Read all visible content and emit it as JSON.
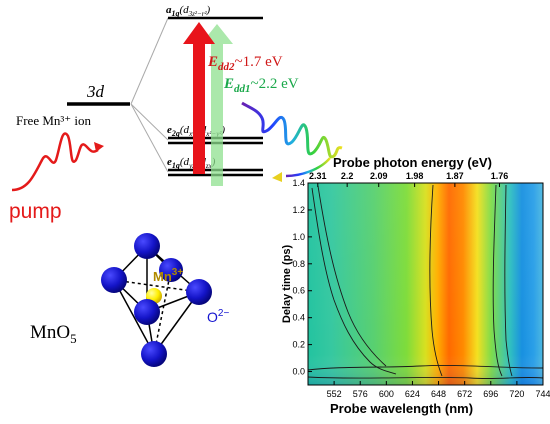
{
  "levels": {
    "free_label": "3d",
    "free_caption": "Free Mn³⁺ ion",
    "a1g": "a₁g(d3z²−r²)",
    "a1g_main": "a",
    "a1g_sub": "1g",
    "a1g_orb": "(d",
    "a1g_orb_sub": "3z²−r²",
    "e2g_main": "e",
    "e2g_sub": "2g",
    "e2g_orb": "(d",
    "e2g_orb_sub1": "xy",
    "e2g_orb_mid": ", d",
    "e2g_orb_sub2": "x²−y²",
    "e1g_main": "e",
    "e1g_sub": "1g",
    "e1g_orb": "(d",
    "e1g_orb_sub1": "yz",
    "e1g_orb_mid": ", d",
    "e1g_orb_sub2": "zx",
    "close": ")"
  },
  "transitions": {
    "dd2_label": "E",
    "dd2_sub": "dd2",
    "dd2_value": "~1.7 eV",
    "dd1_label": "E",
    "dd1_sub": "dd1",
    "dd1_value": "~2.2 eV"
  },
  "pump_label": "pump",
  "structure": {
    "formula": "MnO",
    "formula_sub": "5",
    "mn_ion": "Mn",
    "mn_charge": "3+",
    "o_ion": "O",
    "o_charge": "2−"
  },
  "colors": {
    "dd2": "#e8141b",
    "dd1": "#8fe08f",
    "dd1_text": "#1aa84a",
    "pump": "#e41a1a",
    "sphere": "#1515d0",
    "mn": "#ffee00",
    "mn_label": "#b08a00",
    "o_label": "#1515d0"
  },
  "chart_data": {
    "type": "heatmap",
    "title": "Probe photon energy (eV)",
    "xlabel": "Probe wavelength (nm)",
    "ylabel": "Delay time (ps)",
    "x_ticks": [
      "552",
      "576",
      "600",
      "624",
      "648",
      "672",
      "696",
      "720",
      "744"
    ],
    "top_ticks": [
      "2.31",
      "2.2",
      "2.09",
      "1.98",
      "1.87",
      "1.76"
    ],
    "top_tick_wavelengths": [
      537,
      564,
      593,
      626,
      663,
      704
    ],
    "y_ticks": [
      "0.0",
      "0.2",
      "0.4",
      "0.6",
      "0.8",
      "1.0",
      "1.2",
      "1.4"
    ],
    "xlim": [
      528,
      744
    ],
    "ylim": [
      -0.1,
      1.4
    ],
    "colormap": "jet",
    "features": [
      {
        "name": "positive band",
        "center_nm": 670,
        "intensity": "high"
      },
      {
        "name": "negative band",
        "center_nm": 735,
        "intensity": "low"
      }
    ]
  }
}
